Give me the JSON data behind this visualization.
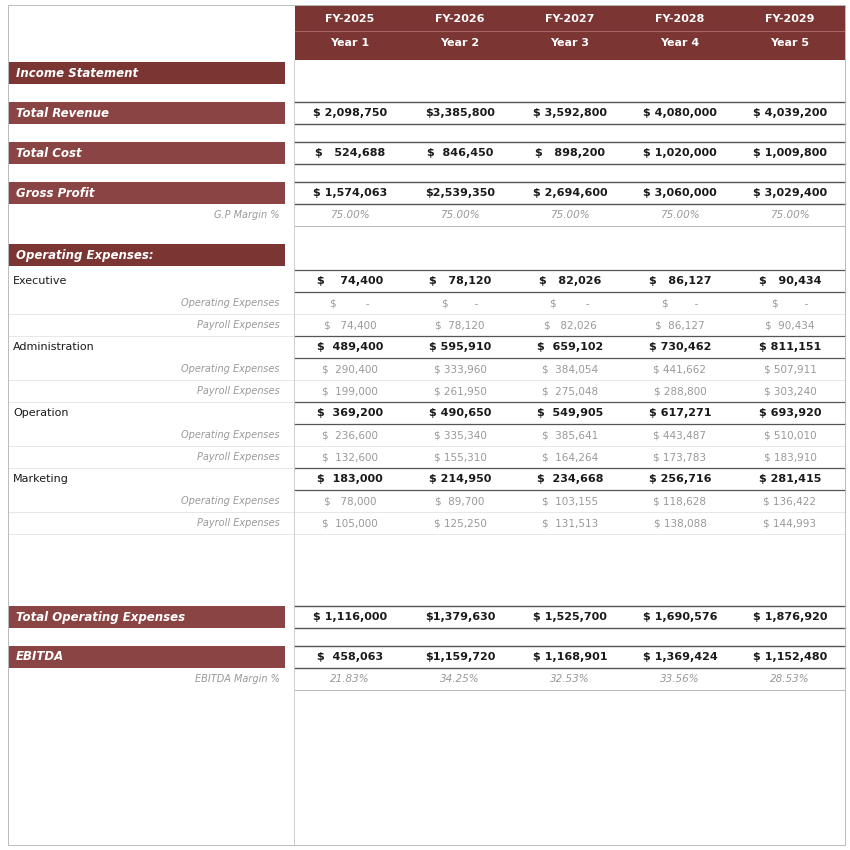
{
  "bg_color": "#FFFFFF",
  "header_dark": "#7B3533",
  "header_medium": "#8B4444",
  "text_white": "#FFFFFF",
  "text_dark": "#1A1A1A",
  "text_gray": "#999999",
  "line_dark": "#555555",
  "line_light": "#CCCCCC",
  "years_fy": [
    "FY-2025",
    "FY-2026",
    "FY-2027",
    "FY-2028",
    "FY-2029"
  ],
  "years_label": [
    "Year 1",
    "Year 2",
    "Year 3",
    "Year 4",
    "Year 5"
  ],
  "rows": [
    {
      "label": "Income Statement",
      "type": "section_header",
      "values": [
        "",
        "",
        "",
        "",
        ""
      ]
    },
    {
      "label": "",
      "type": "spacer_large",
      "values": [
        "",
        "",
        "",
        "",
        ""
      ]
    },
    {
      "label": "Total Revenue",
      "type": "highlight",
      "values": [
        "$ 2,098,750",
        "$3,385,800",
        "$ 3,592,800",
        "$ 4,080,000",
        "$ 4,039,200"
      ]
    },
    {
      "label": "",
      "type": "spacer_large",
      "values": [
        "",
        "",
        "",
        "",
        ""
      ]
    },
    {
      "label": "Total Cost",
      "type": "highlight",
      "values": [
        "$   524,688",
        "$  846,450",
        "$   898,200",
        "$ 1,020,000",
        "$ 1,009,800"
      ]
    },
    {
      "label": "",
      "type": "spacer_large",
      "values": [
        "",
        "",
        "",
        "",
        ""
      ]
    },
    {
      "label": "Gross Profit",
      "type": "highlight",
      "values": [
        "$ 1,574,063",
        "$2,539,350",
        "$ 2,694,600",
        "$ 3,060,000",
        "$ 3,029,400"
      ]
    },
    {
      "label": "G.P Margin %",
      "type": "margin",
      "values": [
        "75.00%",
        "75.00%",
        "75.00%",
        "75.00%",
        "75.00%"
      ]
    },
    {
      "label": "",
      "type": "spacer_large",
      "values": [
        "",
        "",
        "",
        "",
        ""
      ]
    },
    {
      "label": "Operating Expenses:",
      "type": "section_header",
      "values": [
        "",
        "",
        "",
        "",
        ""
      ]
    },
    {
      "label": "",
      "type": "spacer_small",
      "values": [
        "",
        "",
        "",
        "",
        ""
      ]
    },
    {
      "label": "Executive",
      "type": "category",
      "values": [
        "$    74,400",
        "$   78,120",
        "$   82,026",
        "$   86,127",
        "$   90,434"
      ]
    },
    {
      "label": "Operating Expenses",
      "type": "sub_right",
      "values": [
        "$         -",
        "$        -",
        "$         -",
        "$        -",
        "$        -"
      ]
    },
    {
      "label": "Payroll Expenses",
      "type": "sub_right",
      "values": [
        "$   74,400",
        "$  78,120",
        "$   82,026",
        "$  86,127",
        "$  90,434"
      ]
    },
    {
      "label": "Administration",
      "type": "category",
      "values": [
        "$  489,400",
        "$ 595,910",
        "$  659,102",
        "$ 730,462",
        "$ 811,151"
      ]
    },
    {
      "label": "Operating Expenses",
      "type": "sub_right",
      "values": [
        "$  290,400",
        "$ 333,960",
        "$  384,054",
        "$ 441,662",
        "$ 507,911"
      ]
    },
    {
      "label": "Payroll Expenses",
      "type": "sub_right",
      "values": [
        "$  199,000",
        "$ 261,950",
        "$  275,048",
        "$ 288,800",
        "$ 303,240"
      ]
    },
    {
      "label": "Operation",
      "type": "category",
      "values": [
        "$  369,200",
        "$ 490,650",
        "$  549,905",
        "$ 617,271",
        "$ 693,920"
      ]
    },
    {
      "label": "Operating Expenses",
      "type": "sub_right",
      "values": [
        "$  236,600",
        "$ 335,340",
        "$  385,641",
        "$ 443,487",
        "$ 510,010"
      ]
    },
    {
      "label": "Payroll Expenses",
      "type": "sub_right",
      "values": [
        "$  132,600",
        "$ 155,310",
        "$  164,264",
        "$ 173,783",
        "$ 183,910"
      ]
    },
    {
      "label": "Marketing",
      "type": "category",
      "values": [
        "$  183,000",
        "$ 214,950",
        "$  234,668",
        "$ 256,716",
        "$ 281,415"
      ]
    },
    {
      "label": "Operating Expenses",
      "type": "sub_right",
      "values": [
        "$   78,000",
        "$  89,700",
        "$  103,155",
        "$ 118,628",
        "$ 136,422"
      ]
    },
    {
      "label": "Payroll Expenses",
      "type": "sub_right",
      "values": [
        "$  105,000",
        "$ 125,250",
        "$  131,513",
        "$ 138,088",
        "$ 144,993"
      ]
    },
    {
      "label": "",
      "type": "spacer_large",
      "values": [
        "",
        "",
        "",
        "",
        ""
      ]
    },
    {
      "label": "",
      "type": "spacer_large",
      "values": [
        "",
        "",
        "",
        "",
        ""
      ]
    },
    {
      "label": "",
      "type": "spacer_large",
      "values": [
        "",
        "",
        "",
        "",
        ""
      ]
    },
    {
      "label": "",
      "type": "spacer_large",
      "values": [
        "",
        "",
        "",
        "",
        ""
      ]
    },
    {
      "label": "Total Operating Expenses",
      "type": "highlight",
      "values": [
        "$ 1,116,000",
        "$1,379,630",
        "$ 1,525,700",
        "$ 1,690,576",
        "$ 1,876,920"
      ]
    },
    {
      "label": "",
      "type": "spacer_large",
      "values": [
        "",
        "",
        "",
        "",
        ""
      ]
    },
    {
      "label": "EBITDA",
      "type": "highlight",
      "values": [
        "$  458,063",
        "$1,159,720",
        "$ 1,168,901",
        "$ 1,369,424",
        "$ 1,152,480"
      ]
    },
    {
      "label": "EBITDA Margin %",
      "type": "margin",
      "values": [
        "21.83%",
        "34.25%",
        "32.53%",
        "33.56%",
        "28.53%"
      ]
    }
  ]
}
